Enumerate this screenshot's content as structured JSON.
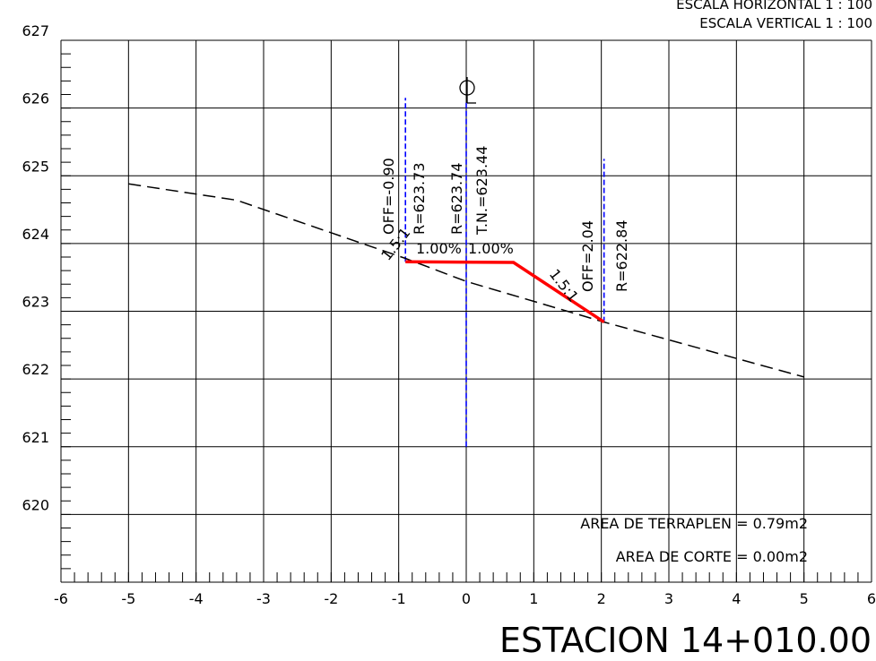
{
  "scales": {
    "horizontal": "ESCALA HORIZONTAL 1 : 100",
    "vertical": "ESCALA VERTICAL 1 : 100"
  },
  "station_label": "ESTACION 14+010.00",
  "centerline_symbol": "CL",
  "areas": {
    "fill": "AREA DE TERRAPLEN = 0.79m2",
    "cut": "AREA DE CORTE = 0.00m2"
  },
  "labels": {
    "left_offset": "OFF=-0.90",
    "left_elev": "R=623.73",
    "center_elev": "R=623.74",
    "ground_elev": "T.N.=623.44",
    "right_offset": "OFF=2.04",
    "right_elev": "R=622.84",
    "left_slope_ratio": "1.5:1",
    "right_slope_ratio": "1.5:1",
    "left_crossfall": "1.00%",
    "right_crossfall": "1.00%"
  },
  "chart_data": {
    "type": "line",
    "xlim": [
      -6,
      6
    ],
    "ylim": [
      619,
      627
    ],
    "x_ticks": [
      -6,
      -5,
      -4,
      -3,
      -2,
      -1,
      0,
      1,
      2,
      3,
      4,
      5,
      6
    ],
    "y_ticks": [
      620,
      621,
      622,
      623,
      624,
      625,
      626,
      627
    ],
    "grid": true,
    "series": [
      {
        "kind": "existing-ground",
        "style": "dashed",
        "color": "#000000",
        "points": [
          [
            -5.0,
            624.88
          ],
          [
            -3.4,
            624.64
          ],
          [
            -0.9,
            623.78
          ],
          [
            0.0,
            623.44
          ],
          [
            2.04,
            622.84
          ],
          [
            5.0,
            622.03
          ]
        ]
      },
      {
        "kind": "proposed-section",
        "style": "solid",
        "color": "#ff0000",
        "points": [
          [
            -0.9,
            623.73
          ],
          [
            0.7,
            623.72
          ],
          [
            2.04,
            622.84
          ]
        ]
      }
    ],
    "verticals": [
      {
        "x": -0.9,
        "y_from": 623.73,
        "y_to": 626.15,
        "color": "#0000ff"
      },
      {
        "x": 0.0,
        "y_from": 621.0,
        "y_to": 626.1,
        "color": "#0000ff"
      },
      {
        "x": 2.04,
        "y_from": 622.84,
        "y_to": 625.25,
        "color": "#0000ff"
      }
    ]
  }
}
